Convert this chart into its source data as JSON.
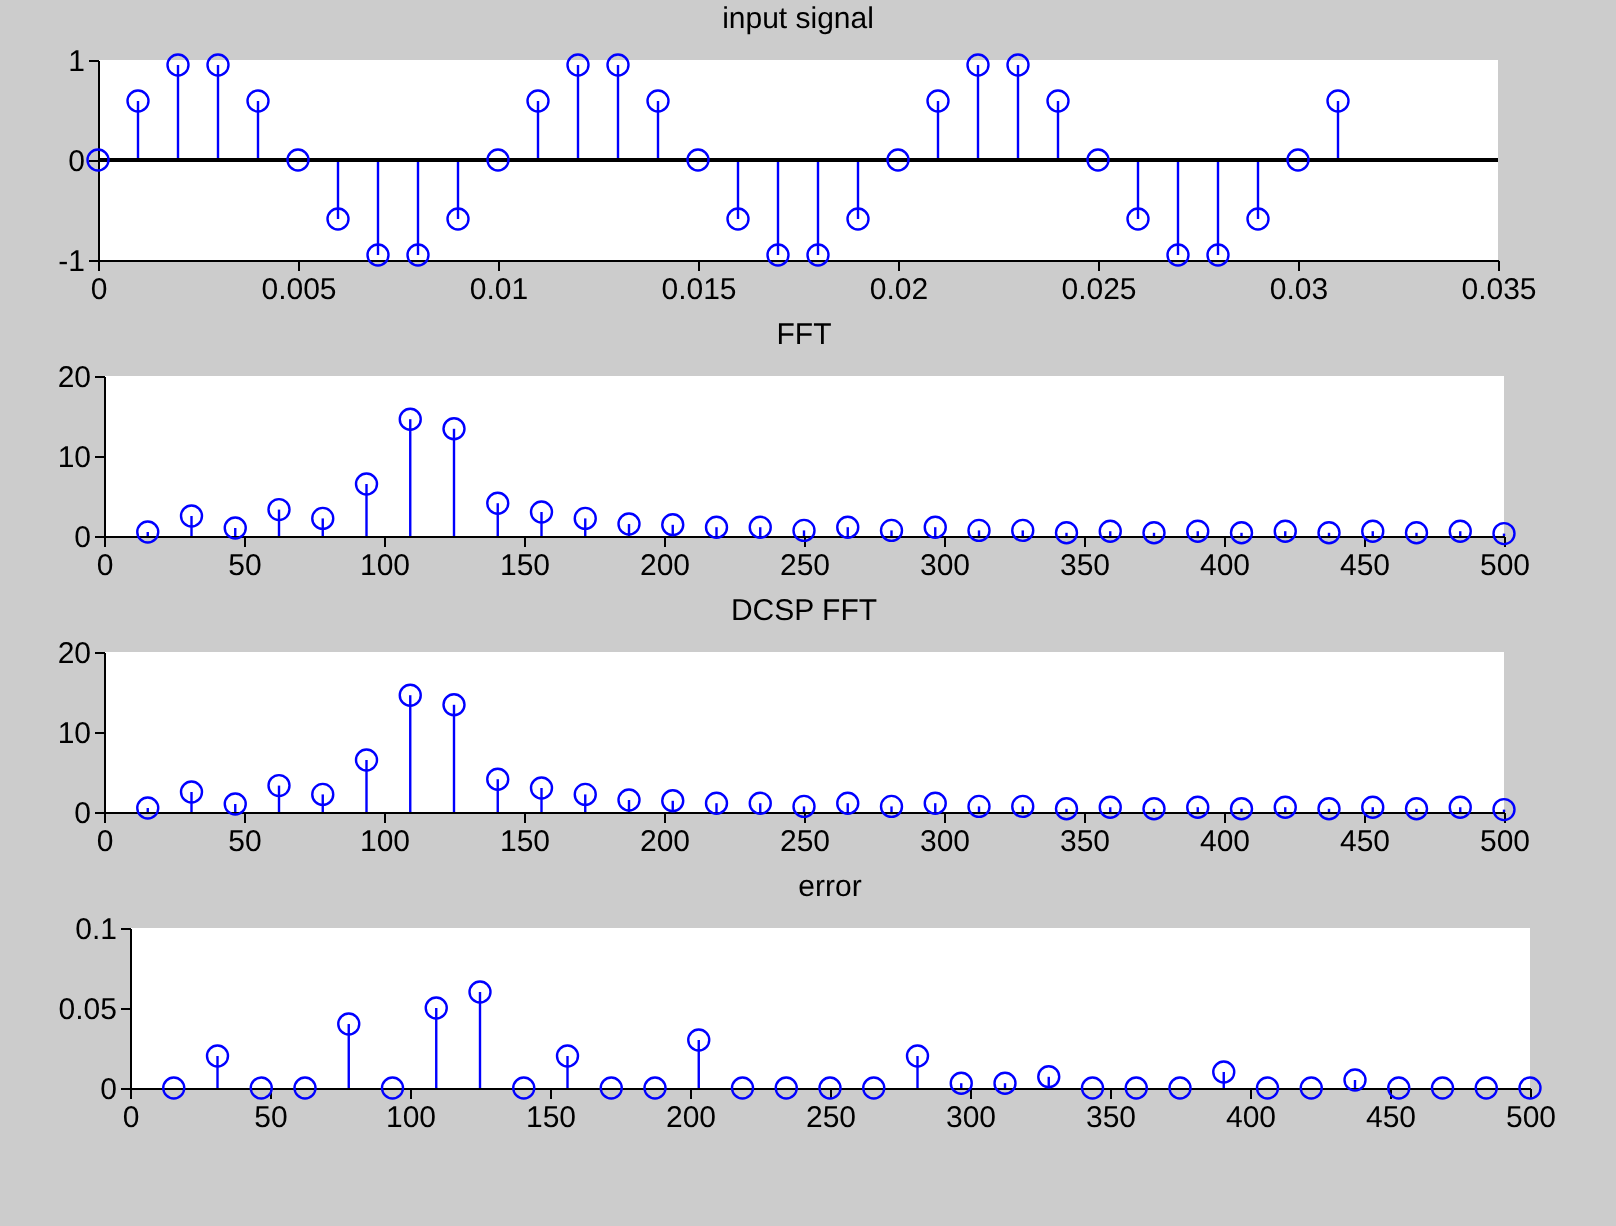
{
  "chart_data": [
    {
      "type": "lollipop",
      "title": "input signal",
      "color": "#0000ff",
      "marker": "circle",
      "grid": false,
      "x": [
        0,
        0.001,
        0.002,
        0.003,
        0.004,
        0.005,
        0.006,
        0.007,
        0.008,
        0.009,
        0.01,
        0.011,
        0.012,
        0.013,
        0.014,
        0.015,
        0.016,
        0.017,
        0.018,
        0.019,
        0.02,
        0.021,
        0.022,
        0.023,
        0.024,
        0.025,
        0.026,
        0.027,
        0.028,
        0.029,
        0.03,
        0.031
      ],
      "values": [
        0,
        0.59,
        0.95,
        0.95,
        0.59,
        0,
        -0.59,
        -0.95,
        -0.95,
        -0.59,
        0,
        0.59,
        0.95,
        0.95,
        0.59,
        0,
        -0.59,
        -0.95,
        -0.95,
        -0.59,
        0,
        0.59,
        0.95,
        0.95,
        0.59,
        0,
        -0.59,
        -0.95,
        -0.95,
        -0.59,
        0,
        0.59
      ],
      "xlim": [
        0,
        0.035
      ],
      "xticks": [
        0,
        0.005,
        0.01,
        0.015,
        0.02,
        0.025,
        0.03,
        0.035
      ],
      "ylim": [
        -1,
        1
      ],
      "yticks": [
        -1,
        0,
        1
      ],
      "ref_lines": [
        {
          "axis": "y",
          "value": 0,
          "color": "#000000"
        }
      ]
    },
    {
      "type": "lollipop",
      "title": "FFT",
      "color": "#0000ff",
      "marker": "circle",
      "grid": false,
      "x": [
        15.625,
        31.25,
        46.875,
        62.5,
        78.125,
        93.75,
        109.375,
        125,
        140.625,
        156.25,
        171.875,
        187.5,
        203.125,
        218.75,
        234.375,
        250,
        265.625,
        281.25,
        296.875,
        312.5,
        328.125,
        343.75,
        359.375,
        375,
        390.625,
        406.25,
        421.875,
        437.5,
        453.125,
        468.75,
        484.375,
        500
      ],
      "values": [
        0.5,
        2.5,
        1,
        3.3,
        2.2,
        6.5,
        14.6,
        13.4,
        4.1,
        3,
        2.2,
        1.5,
        1.4,
        1.1,
        1.1,
        0.7,
        1.1,
        0.7,
        1.1,
        0.7,
        0.7,
        0.4,
        0.6,
        0.4,
        0.6,
        0.4,
        0.6,
        0.4,
        0.6,
        0.4,
        0.6,
        0.3
      ],
      "xlim": [
        0,
        500
      ],
      "xticks": [
        0,
        50,
        100,
        150,
        200,
        250,
        300,
        350,
        400,
        450,
        500
      ],
      "ylim": [
        0,
        20
      ],
      "yticks": [
        0,
        10,
        20
      ]
    },
    {
      "type": "lollipop",
      "title": "DCSP FFT",
      "color": "#0000ff",
      "marker": "circle",
      "grid": false,
      "x": [
        15.625,
        31.25,
        46.875,
        62.5,
        78.125,
        93.75,
        109.375,
        125,
        140.625,
        156.25,
        171.875,
        187.5,
        203.125,
        218.75,
        234.375,
        250,
        265.625,
        281.25,
        296.875,
        312.5,
        328.125,
        343.75,
        359.375,
        375,
        390.625,
        406.25,
        421.875,
        437.5,
        453.125,
        468.75,
        484.375,
        500
      ],
      "values": [
        0.5,
        2.5,
        1,
        3.3,
        2.2,
        6.5,
        14.6,
        13.4,
        4.1,
        3,
        2.2,
        1.5,
        1.4,
        1.1,
        1.1,
        0.7,
        1.1,
        0.7,
        1.1,
        0.7,
        0.7,
        0.4,
        0.6,
        0.4,
        0.6,
        0.4,
        0.6,
        0.4,
        0.6,
        0.4,
        0.6,
        0.3
      ],
      "xlim": [
        0,
        500
      ],
      "xticks": [
        0,
        50,
        100,
        150,
        200,
        250,
        300,
        350,
        400,
        450,
        500
      ],
      "ylim": [
        0,
        20
      ],
      "yticks": [
        0,
        10,
        20
      ]
    },
    {
      "type": "lollipop",
      "title": "error",
      "color": "#0000ff",
      "marker": "circle",
      "grid": false,
      "x": [
        15.625,
        31.25,
        46.875,
        62.5,
        78.125,
        93.75,
        109.375,
        125,
        140.625,
        156.25,
        171.875,
        187.5,
        203.125,
        218.75,
        234.375,
        250,
        265.625,
        281.25,
        296.875,
        312.5,
        328.125,
        343.75,
        359.375,
        375,
        390.625,
        406.25,
        421.875,
        437.5,
        453.125,
        468.75,
        484.375,
        500
      ],
      "values": [
        0,
        0.02,
        0,
        0,
        0.04,
        0,
        0.05,
        0.06,
        0,
        0.02,
        0,
        0,
        0.03,
        0,
        0,
        0,
        0,
        0.02,
        0.003,
        0.003,
        0.007,
        0,
        0,
        0,
        0.01,
        0,
        0,
        0.005,
        0,
        0,
        0,
        0
      ],
      "xlim": [
        0,
        500
      ],
      "xticks": [
        0,
        50,
        100,
        150,
        200,
        250,
        300,
        350,
        400,
        450,
        500
      ],
      "ylim": [
        0,
        0.1
      ],
      "yticks": [
        0,
        0.05,
        0.1
      ]
    }
  ]
}
